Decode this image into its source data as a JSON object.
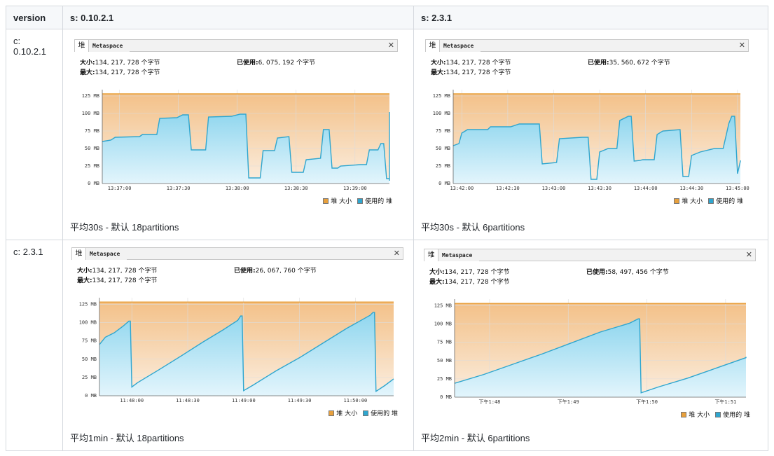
{
  "table": {
    "headers": [
      "version",
      "s: 0.10.2.1",
      "s: 2.3.1"
    ],
    "rows": [
      "c: 0.10.2.1",
      "c: 2.3.1"
    ]
  },
  "colors": {
    "heap_size": "#e8a03c",
    "heap_used": "#2fa6cf"
  },
  "panels": [
    {
      "tab_heap": "堆",
      "tab_meta": "Metaspace",
      "close": "✕",
      "size_label": "大小:",
      "size_value": "134, 217, 728 个字节",
      "max_label": "最大:",
      "max_value": "134, 217, 728 个字节",
      "used_label": "已使用:",
      "used_value": "6, 075, 192 个字节",
      "legend_size": "堆 大小",
      "legend_used": "使用的 堆",
      "caption": "平均30s  - 默认 18partitions"
    },
    {
      "tab_heap": "堆",
      "tab_meta": "Metaspace",
      "close": "✕",
      "size_label": "大小:",
      "size_value": "134, 217, 728 个字节",
      "max_label": "最大:",
      "max_value": "134, 217, 728 个字节",
      "used_label": "已使用:",
      "used_value": "35, 560, 672 个字节",
      "legend_size": "堆 大小",
      "legend_used": "使用的 堆",
      "caption": "平均30s   - 默认 6partitions"
    },
    {
      "tab_heap": "堆",
      "tab_meta": "Metaspace",
      "close": "✕",
      "size_label": "大小:",
      "size_value": "134, 217, 728 个字节",
      "max_label": "最大:",
      "max_value": "134, 217, 728 个字节",
      "used_label": "已使用:",
      "used_value": "26, 067, 760 个字节",
      "legend_size": "堆 大小",
      "legend_used": "使用的 堆",
      "caption": "平均1min - 默认 18partitions"
    },
    {
      "tab_heap": "堆",
      "tab_meta": "Metaspace",
      "close": "✕",
      "size_label": "大小:",
      "size_value": "134, 217, 728 个字节",
      "max_label": "最大:",
      "max_value": "134, 217, 728 个字节",
      "used_label": "已使用:",
      "used_value": "58, 497, 456 个字节",
      "legend_size": "堆 大小",
      "legend_used": "使用的 堆",
      "caption": "平均2min - 默认 6partitions"
    }
  ],
  "chart_data": [
    {
      "type": "area",
      "yticks": [
        "0 MB",
        "25 MB",
        "50 MB",
        "75 MB",
        "100 MB",
        "125 MB"
      ],
      "ylim": [
        0,
        134
      ],
      "xticks": [
        "13:37:00",
        "13:37:30",
        "13:38:00",
        "13:38:30",
        "13:39:00",
        "13:39:30"
      ],
      "xtick_pos": [
        0.06,
        0.265,
        0.47,
        0.675,
        0.88,
        1.085
      ],
      "heap_size": 128,
      "used": [
        [
          0,
          60
        ],
        [
          0.03,
          62
        ],
        [
          0.045,
          66
        ],
        [
          0.13,
          67
        ],
        [
          0.14,
          70
        ],
        [
          0.19,
          70
        ],
        [
          0.2,
          93
        ],
        [
          0.26,
          94
        ],
        [
          0.28,
          98
        ],
        [
          0.3,
          98
        ],
        [
          0.31,
          48
        ],
        [
          0.36,
          48
        ],
        [
          0.37,
          95
        ],
        [
          0.45,
          96
        ],
        [
          0.48,
          99
        ],
        [
          0.5,
          99
        ],
        [
          0.51,
          8
        ],
        [
          0.55,
          8
        ],
        [
          0.56,
          47
        ],
        [
          0.6,
          47
        ],
        [
          0.61,
          65
        ],
        [
          0.65,
          67
        ],
        [
          0.66,
          16
        ],
        [
          0.7,
          16
        ],
        [
          0.71,
          34
        ],
        [
          0.76,
          36
        ],
        [
          0.77,
          77
        ],
        [
          0.79,
          77
        ],
        [
          0.8,
          22
        ],
        [
          0.82,
          22
        ],
        [
          0.83,
          25
        ],
        [
          0.9,
          27
        ],
        [
          0.92,
          27
        ],
        [
          0.93,
          48
        ],
        [
          0.96,
          48
        ],
        [
          0.97,
          57
        ],
        [
          0.98,
          57
        ],
        [
          0.99,
          7
        ],
        [
          1.03,
          7
        ],
        [
          1.04,
          18
        ],
        [
          1.06,
          19
        ],
        [
          1.1,
          21
        ],
        [
          1.11,
          60
        ],
        [
          1.14,
          65
        ],
        [
          1.16,
          78
        ],
        [
          1.2,
          87
        ],
        [
          1.21,
          99
        ],
        [
          1.27,
          102
        ],
        [
          1.29,
          102
        ],
        [
          1.3,
          4
        ],
        [
          1.31,
          4
        ]
      ]
    },
    {
      "type": "area",
      "yticks": [
        "0 MB",
        "25 MB",
        "50 MB",
        "75 MB",
        "100 MB",
        "125 MB"
      ],
      "ylim": [
        0,
        134
      ],
      "xticks": [
        "13:42:00",
        "13:42:30",
        "13:43:00",
        "13:43:30",
        "13:44:00",
        "13:44:30",
        "13:45:00"
      ],
      "xtick_pos": [
        0.03,
        0.19,
        0.35,
        0.51,
        0.67,
        0.83,
        0.99
      ],
      "heap_size": 128,
      "used": [
        [
          0,
          54
        ],
        [
          0.02,
          57
        ],
        [
          0.03,
          72
        ],
        [
          0.05,
          77
        ],
        [
          0.12,
          77
        ],
        [
          0.13,
          81
        ],
        [
          0.2,
          81
        ],
        [
          0.23,
          85
        ],
        [
          0.3,
          85
        ],
        [
          0.31,
          28
        ],
        [
          0.36,
          30
        ],
        [
          0.37,
          64
        ],
        [
          0.45,
          66
        ],
        [
          0.47,
          66
        ],
        [
          0.48,
          6
        ],
        [
          0.5,
          6
        ],
        [
          0.51,
          45
        ],
        [
          0.54,
          50
        ],
        [
          0.57,
          50
        ],
        [
          0.58,
          90
        ],
        [
          0.61,
          96
        ],
        [
          0.62,
          96
        ],
        [
          0.63,
          32
        ],
        [
          0.65,
          33
        ],
        [
          0.66,
          34
        ],
        [
          0.7,
          34
        ],
        [
          0.71,
          70
        ],
        [
          0.73,
          75
        ],
        [
          0.79,
          77
        ],
        [
          0.8,
          10
        ],
        [
          0.82,
          10
        ],
        [
          0.83,
          40
        ],
        [
          0.86,
          45
        ],
        [
          0.91,
          50
        ],
        [
          0.94,
          50
        ],
        [
          0.96,
          86
        ],
        [
          0.97,
          96
        ],
        [
          0.98,
          96
        ],
        [
          0.99,
          14
        ],
        [
          1.0,
          32
        ],
        [
          1.02,
          33
        ]
      ]
    },
    {
      "type": "area",
      "yticks": [
        "0 MB",
        "25 MB",
        "50 MB",
        "75 MB",
        "100 MB",
        "125 MB"
      ],
      "ylim": [
        0,
        134
      ],
      "xticks": [
        "11:48:00",
        "11:48:30",
        "11:49:00",
        "11:49:30",
        "11:50:00"
      ],
      "xtick_pos": [
        0.11,
        0.3,
        0.49,
        0.68,
        0.87
      ],
      "heap_size": 128,
      "used": [
        [
          0,
          70
        ],
        [
          0.02,
          80
        ],
        [
          0.05,
          86
        ],
        [
          0.08,
          95
        ],
        [
          0.1,
          102
        ],
        [
          0.105,
          102
        ],
        [
          0.11,
          12
        ],
        [
          0.13,
          18
        ],
        [
          0.2,
          35
        ],
        [
          0.28,
          55
        ],
        [
          0.35,
          73
        ],
        [
          0.42,
          90
        ],
        [
          0.47,
          103
        ],
        [
          0.48,
          109
        ],
        [
          0.485,
          109
        ],
        [
          0.49,
          7
        ],
        [
          0.52,
          14
        ],
        [
          0.6,
          34
        ],
        [
          0.68,
          52
        ],
        [
          0.76,
          72
        ],
        [
          0.84,
          92
        ],
        [
          0.92,
          110
        ],
        [
          0.93,
          114
        ],
        [
          0.935,
          114
        ],
        [
          0.94,
          6
        ],
        [
          0.97,
          14
        ],
        [
          1.0,
          23
        ]
      ]
    },
    {
      "type": "area",
      "yticks": [
        "0 MB",
        "25 MB",
        "50 MB",
        "75 MB",
        "100 MB",
        "125 MB"
      ],
      "ylim": [
        0,
        134
      ],
      "xticks": [
        "下午1:48",
        "下午1:49",
        "下午1:50",
        "下午1:51"
      ],
      "xtick_pos": [
        0.12,
        0.39,
        0.66,
        0.93
      ],
      "heap_size": 128,
      "used": [
        [
          0,
          19
        ],
        [
          0.1,
          31
        ],
        [
          0.2,
          45
        ],
        [
          0.3,
          59
        ],
        [
          0.4,
          74
        ],
        [
          0.5,
          89
        ],
        [
          0.6,
          101
        ],
        [
          0.63,
          107
        ],
        [
          0.635,
          107
        ],
        [
          0.64,
          6
        ],
        [
          0.7,
          14
        ],
        [
          0.8,
          26
        ],
        [
          0.9,
          40
        ],
        [
          1.0,
          54
        ],
        [
          1.01,
          55
        ]
      ]
    }
  ]
}
